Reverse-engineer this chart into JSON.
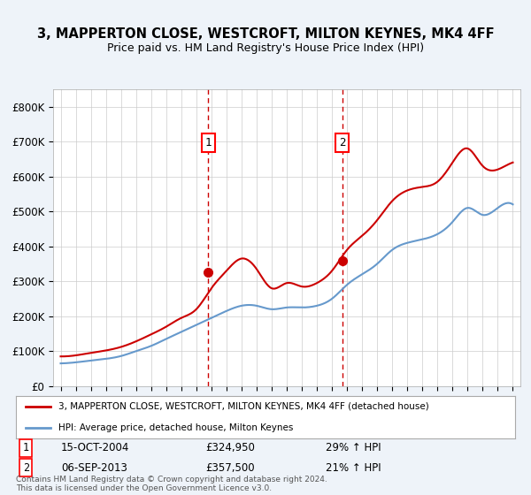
{
  "title": "3, MAPPERTON CLOSE, WESTCROFT, MILTON KEYNES, MK4 4FF",
  "subtitle": "Price paid vs. HM Land Registry's House Price Index (HPI)",
  "legend_line1": "3, MAPPERTON CLOSE, WESTCROFT, MILTON KEYNES, MK4 4FF (detached house)",
  "legend_line2": "HPI: Average price, detached house, Milton Keynes",
  "annotation1_label": "1",
  "annotation1_date": "15-OCT-2004",
  "annotation1_price": "£324,950",
  "annotation1_hpi": "29% ↑ HPI",
  "annotation1_year": 2004.79,
  "annotation1_value": 324950,
  "annotation2_label": "2",
  "annotation2_date": "06-SEP-2013",
  "annotation2_price": "£357,500",
  "annotation2_hpi": "21% ↑ HPI",
  "annotation2_year": 2013.69,
  "annotation2_value": 357500,
  "footer": "Contains HM Land Registry data © Crown copyright and database right 2024.\nThis data is licensed under the Open Government Licence v3.0.",
  "price_color": "#cc0000",
  "hpi_color": "#6699cc",
  "background_color": "#eef3f9",
  "plot_bg_color": "#ffffff",
  "ylim": [
    0,
    850000
  ],
  "yticks": [
    0,
    100000,
    200000,
    300000,
    400000,
    500000,
    600000,
    700000,
    800000
  ],
  "ytick_labels": [
    "£0",
    "£100K",
    "£200K",
    "£300K",
    "£400K",
    "£500K",
    "£600K",
    "£700K",
    "£800K"
  ],
  "years": [
    1995,
    1996,
    1997,
    1998,
    1999,
    2000,
    2001,
    2002,
    2003,
    2004,
    2005,
    2006,
    2007,
    2008,
    2009,
    2010,
    2011,
    2012,
    2013,
    2014,
    2015,
    2016,
    2017,
    2018,
    2019,
    2020,
    2021,
    2022,
    2023,
    2024,
    2025
  ],
  "hpi_values": [
    65000,
    68000,
    73000,
    78000,
    86000,
    100000,
    115000,
    135000,
    155000,
    175000,
    195000,
    215000,
    230000,
    230000,
    220000,
    225000,
    225000,
    230000,
    250000,
    290000,
    320000,
    350000,
    390000,
    410000,
    420000,
    435000,
    470000,
    510000,
    490000,
    510000,
    520000
  ],
  "price_values": [
    85000,
    88000,
    95000,
    102000,
    112000,
    128000,
    148000,
    170000,
    195000,
    220000,
    280000,
    330000,
    365000,
    335000,
    280000,
    295000,
    285000,
    295000,
    330000,
    390000,
    430000,
    475000,
    530000,
    560000,
    570000,
    585000,
    640000,
    680000,
    630000,
    620000,
    640000
  ]
}
